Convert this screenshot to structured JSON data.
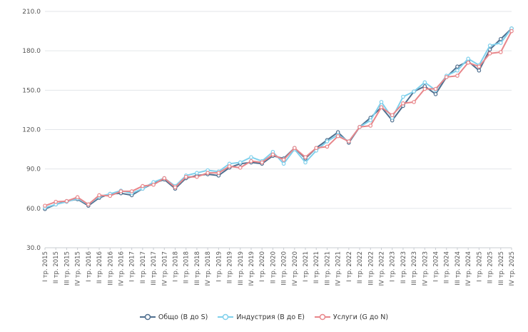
{
  "chart_data": {
    "type": "line",
    "title": "",
    "xlabel": "",
    "ylabel": "",
    "ylim": [
      30,
      210
    ],
    "yticks": [
      "30.0",
      "60.0",
      "90.0",
      "120.0",
      "150.0",
      "180.0",
      "210.0"
    ],
    "grid": true,
    "legend": "bottom-center",
    "categories": [
      "I тр. 2015",
      "II тр. 2015",
      "III тр. 2015",
      "IV тр. 2015",
      "I тр. 2016",
      "II тр. 2016",
      "III тр. 2016",
      "IV тр. 2016",
      "I тр. 2017",
      "II тр. 2017",
      "III тр. 2017",
      "IV тр. 2017",
      "I тр. 2018",
      "II тр. 2018",
      "III тр. 2018",
      "IV тр. 2018",
      "I тр. 2019",
      "II тр. 2019",
      "III тр. 2019",
      "IV тр. 2019",
      "I тр. 2020",
      "II тр. 2020",
      "III тр. 2020",
      "IV тр. 2020",
      "I тр. 2021",
      "II тр. 2021",
      "III тр. 2021",
      "IV тр. 2021",
      "I тр. 2022",
      "II тр. 2022",
      "III тр. 2022",
      "IV тр. 2022",
      "I тр. 2023",
      "II тр. 2023",
      "III тр. 2023",
      "IV тр. 2023",
      "I тр. 2024",
      "II тр. 2024",
      "III тр. 2024",
      "IV тр. 2024",
      "I тр. 2025",
      "II тр. 2025",
      "III тр. 2025",
      "IV тр. 2025"
    ],
    "series": [
      {
        "name": "Общо (B до S)",
        "color": "#4f6f8f",
        "values": [
          59.5,
          63,
          65.5,
          67,
          62,
          68,
          71,
          71.5,
          70,
          75,
          79,
          82,
          75,
          83,
          85,
          86,
          85,
          91,
          94,
          95,
          94,
          100,
          98,
          106,
          98,
          106,
          112,
          118,
          110,
          122,
          129,
          137,
          127,
          138,
          149,
          153,
          147,
          160,
          168,
          172,
          165,
          181,
          189,
          197
        ]
      },
      {
        "name": "Индустрия (B до E)",
        "color": "#7fd0ec",
        "values": [
          60.5,
          63,
          65,
          67.5,
          63,
          69,
          71,
          73.5,
          71.5,
          75,
          80,
          83,
          77,
          85,
          87,
          89,
          88,
          94,
          95,
          99,
          96,
          103,
          94,
          105,
          95,
          104,
          111,
          116,
          111,
          122,
          127,
          141,
          129,
          145,
          149,
          156,
          150,
          161,
          165,
          174,
          169,
          184,
          186,
          197
        ]
      },
      {
        "name": "Услуги (G до N)",
        "color": "#e8868a",
        "values": [
          62,
          65,
          65.5,
          68.5,
          63,
          70,
          69.5,
          73,
          73,
          77,
          78,
          83,
          76,
          84,
          84,
          87,
          87,
          92,
          91,
          96,
          95,
          101,
          97,
          106,
          99,
          106,
          107,
          115,
          111,
          122,
          123,
          137,
          131,
          140,
          141,
          151,
          151,
          160,
          161,
          171,
          168,
          178,
          179,
          195
        ]
      }
    ]
  }
}
